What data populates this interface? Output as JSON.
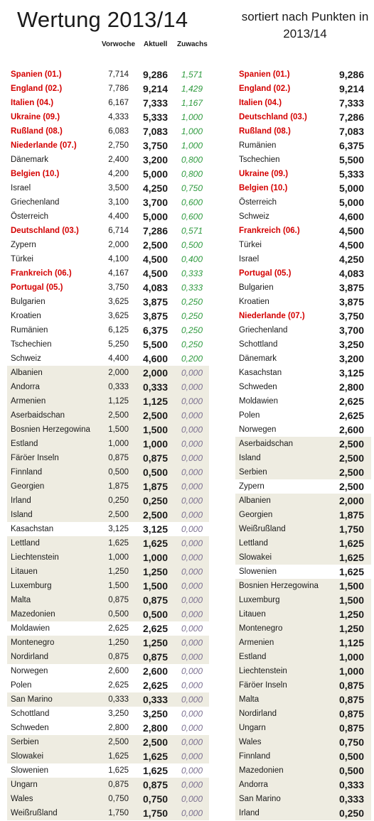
{
  "title": "Wertung 2013/14",
  "subtitle_line1": "sortiert nach Punkten in",
  "subtitle_line2": "2013/14",
  "headers": {
    "vorwoche": "Vorwoche",
    "aktuell": "Aktuell",
    "zuwachs": "Zuwachs"
  },
  "left_table": [
    {
      "name": "Spanien (01.)",
      "vorwoche": "7,714",
      "aktuell": "9,286",
      "zuwachs": "1,571",
      "highlight": true,
      "shaded": false
    },
    {
      "name": "England (02.)",
      "vorwoche": "7,786",
      "aktuell": "9,214",
      "zuwachs": "1,429",
      "highlight": true,
      "shaded": false
    },
    {
      "name": "Italien (04.)",
      "vorwoche": "6,167",
      "aktuell": "7,333",
      "zuwachs": "1,167",
      "highlight": true,
      "shaded": false
    },
    {
      "name": "Ukraine (09.)",
      "vorwoche": "4,333",
      "aktuell": "5,333",
      "zuwachs": "1,000",
      "highlight": true,
      "shaded": false
    },
    {
      "name": "Rußland (08.)",
      "vorwoche": "6,083",
      "aktuell": "7,083",
      "zuwachs": "1,000",
      "highlight": true,
      "shaded": false
    },
    {
      "name": "Niederlande (07.)",
      "vorwoche": "2,750",
      "aktuell": "3,750",
      "zuwachs": "1,000",
      "highlight": true,
      "shaded": false
    },
    {
      "name": "Dänemark",
      "vorwoche": "2,400",
      "aktuell": "3,200",
      "zuwachs": "0,800",
      "highlight": false,
      "shaded": false
    },
    {
      "name": "Belgien (10.)",
      "vorwoche": "4,200",
      "aktuell": "5,000",
      "zuwachs": "0,800",
      "highlight": true,
      "shaded": false
    },
    {
      "name": "Israel",
      "vorwoche": "3,500",
      "aktuell": "4,250",
      "zuwachs": "0,750",
      "highlight": false,
      "shaded": false
    },
    {
      "name": "Griechenland",
      "vorwoche": "3,100",
      "aktuell": "3,700",
      "zuwachs": "0,600",
      "highlight": false,
      "shaded": false
    },
    {
      "name": "Österreich",
      "vorwoche": "4,400",
      "aktuell": "5,000",
      "zuwachs": "0,600",
      "highlight": false,
      "shaded": false
    },
    {
      "name": "Deutschland (03.)",
      "vorwoche": "6,714",
      "aktuell": "7,286",
      "zuwachs": "0,571",
      "highlight": true,
      "shaded": false
    },
    {
      "name": "Zypern",
      "vorwoche": "2,000",
      "aktuell": "2,500",
      "zuwachs": "0,500",
      "highlight": false,
      "shaded": false
    },
    {
      "name": "Türkei",
      "vorwoche": "4,100",
      "aktuell": "4,500",
      "zuwachs": "0,400",
      "highlight": false,
      "shaded": false
    },
    {
      "name": "Frankreich (06.)",
      "vorwoche": "4,167",
      "aktuell": "4,500",
      "zuwachs": "0,333",
      "highlight": true,
      "shaded": false
    },
    {
      "name": "Portugal (05.)",
      "vorwoche": "3,750",
      "aktuell": "4,083",
      "zuwachs": "0,333",
      "highlight": true,
      "shaded": false
    },
    {
      "name": "Bulgarien",
      "vorwoche": "3,625",
      "aktuell": "3,875",
      "zuwachs": "0,250",
      "highlight": false,
      "shaded": false
    },
    {
      "name": "Kroatien",
      "vorwoche": "3,625",
      "aktuell": "3,875",
      "zuwachs": "0,250",
      "highlight": false,
      "shaded": false
    },
    {
      "name": "Rumänien",
      "vorwoche": "6,125",
      "aktuell": "6,375",
      "zuwachs": "0,250",
      "highlight": false,
      "shaded": false
    },
    {
      "name": "Tschechien",
      "vorwoche": "5,250",
      "aktuell": "5,500",
      "zuwachs": "0,250",
      "highlight": false,
      "shaded": false
    },
    {
      "name": "Schweiz",
      "vorwoche": "4,400",
      "aktuell": "4,600",
      "zuwachs": "0,200",
      "highlight": false,
      "shaded": false
    },
    {
      "name": "Albanien",
      "vorwoche": "2,000",
      "aktuell": "2,000",
      "zuwachs": "0,000",
      "highlight": false,
      "shaded": true
    },
    {
      "name": "Andorra",
      "vorwoche": "0,333",
      "aktuell": "0,333",
      "zuwachs": "0,000",
      "highlight": false,
      "shaded": true
    },
    {
      "name": "Armenien",
      "vorwoche": "1,125",
      "aktuell": "1,125",
      "zuwachs": "0,000",
      "highlight": false,
      "shaded": true
    },
    {
      "name": "Aserbaidschan",
      "vorwoche": "2,500",
      "aktuell": "2,500",
      "zuwachs": "0,000",
      "highlight": false,
      "shaded": true
    },
    {
      "name": "Bosnien Herzegowina",
      "vorwoche": "1,500",
      "aktuell": "1,500",
      "zuwachs": "0,000",
      "highlight": false,
      "shaded": true
    },
    {
      "name": "Estland",
      "vorwoche": "1,000",
      "aktuell": "1,000",
      "zuwachs": "0,000",
      "highlight": false,
      "shaded": true
    },
    {
      "name": "Färöer Inseln",
      "vorwoche": "0,875",
      "aktuell": "0,875",
      "zuwachs": "0,000",
      "highlight": false,
      "shaded": true
    },
    {
      "name": "Finnland",
      "vorwoche": "0,500",
      "aktuell": "0,500",
      "zuwachs": "0,000",
      "highlight": false,
      "shaded": true
    },
    {
      "name": "Georgien",
      "vorwoche": "1,875",
      "aktuell": "1,875",
      "zuwachs": "0,000",
      "highlight": false,
      "shaded": true
    },
    {
      "name": "Irland",
      "vorwoche": "0,250",
      "aktuell": "0,250",
      "zuwachs": "0,000",
      "highlight": false,
      "shaded": true
    },
    {
      "name": "Island",
      "vorwoche": "2,500",
      "aktuell": "2,500",
      "zuwachs": "0,000",
      "highlight": false,
      "shaded": true
    },
    {
      "name": "Kasachstan",
      "vorwoche": "3,125",
      "aktuell": "3,125",
      "zuwachs": "0,000",
      "highlight": false,
      "shaded": false
    },
    {
      "name": "Lettland",
      "vorwoche": "1,625",
      "aktuell": "1,625",
      "zuwachs": "0,000",
      "highlight": false,
      "shaded": true
    },
    {
      "name": "Liechtenstein",
      "vorwoche": "1,000",
      "aktuell": "1,000",
      "zuwachs": "0,000",
      "highlight": false,
      "shaded": true
    },
    {
      "name": "Litauen",
      "vorwoche": "1,250",
      "aktuell": "1,250",
      "zuwachs": "0,000",
      "highlight": false,
      "shaded": true
    },
    {
      "name": "Luxemburg",
      "vorwoche": "1,500",
      "aktuell": "1,500",
      "zuwachs": "0,000",
      "highlight": false,
      "shaded": true
    },
    {
      "name": "Malta",
      "vorwoche": "0,875",
      "aktuell": "0,875",
      "zuwachs": "0,000",
      "highlight": false,
      "shaded": true
    },
    {
      "name": "Mazedonien",
      "vorwoche": "0,500",
      "aktuell": "0,500",
      "zuwachs": "0,000",
      "highlight": false,
      "shaded": true
    },
    {
      "name": "Moldawien",
      "vorwoche": "2,625",
      "aktuell": "2,625",
      "zuwachs": "0,000",
      "highlight": false,
      "shaded": false
    },
    {
      "name": "Montenegro",
      "vorwoche": "1,250",
      "aktuell": "1,250",
      "zuwachs": "0,000",
      "highlight": false,
      "shaded": true
    },
    {
      "name": "Nordirland",
      "vorwoche": "0,875",
      "aktuell": "0,875",
      "zuwachs": "0,000",
      "highlight": false,
      "shaded": true
    },
    {
      "name": "Norwegen",
      "vorwoche": "2,600",
      "aktuell": "2,600",
      "zuwachs": "0,000",
      "highlight": false,
      "shaded": false
    },
    {
      "name": "Polen",
      "vorwoche": "2,625",
      "aktuell": "2,625",
      "zuwachs": "0,000",
      "highlight": false,
      "shaded": false
    },
    {
      "name": "San Marino",
      "vorwoche": "0,333",
      "aktuell": "0,333",
      "zuwachs": "0,000",
      "highlight": false,
      "shaded": true
    },
    {
      "name": "Schottland",
      "vorwoche": "3,250",
      "aktuell": "3,250",
      "zuwachs": "0,000",
      "highlight": false,
      "shaded": false
    },
    {
      "name": "Schweden",
      "vorwoche": "2,800",
      "aktuell": "2,800",
      "zuwachs": "0,000",
      "highlight": false,
      "shaded": false
    },
    {
      "name": "Serbien",
      "vorwoche": "2,500",
      "aktuell": "2,500",
      "zuwachs": "0,000",
      "highlight": false,
      "shaded": true
    },
    {
      "name": "Slowakei",
      "vorwoche": "1,625",
      "aktuell": "1,625",
      "zuwachs": "0,000",
      "highlight": false,
      "shaded": true
    },
    {
      "name": "Slowenien",
      "vorwoche": "1,625",
      "aktuell": "1,625",
      "zuwachs": "0,000",
      "highlight": false,
      "shaded": false
    },
    {
      "name": "Ungarn",
      "vorwoche": "0,875",
      "aktuell": "0,875",
      "zuwachs": "0,000",
      "highlight": false,
      "shaded": true
    },
    {
      "name": "Wales",
      "vorwoche": "0,750",
      "aktuell": "0,750",
      "zuwachs": "0,000",
      "highlight": false,
      "shaded": true
    },
    {
      "name": "Weißrußland",
      "vorwoche": "1,750",
      "aktuell": "1,750",
      "zuwachs": "0,000",
      "highlight": false,
      "shaded": true
    }
  ],
  "right_table": [
    {
      "name": "Spanien (01.)",
      "punkte": "9,286",
      "highlight": true,
      "shaded": false
    },
    {
      "name": "England (02.)",
      "punkte": "9,214",
      "highlight": true,
      "shaded": false
    },
    {
      "name": "Italien (04.)",
      "punkte": "7,333",
      "highlight": true,
      "shaded": false
    },
    {
      "name": "Deutschland (03.)",
      "punkte": "7,286",
      "highlight": true,
      "shaded": false
    },
    {
      "name": "Rußland (08.)",
      "punkte": "7,083",
      "highlight": true,
      "shaded": false
    },
    {
      "name": "Rumänien",
      "punkte": "6,375",
      "highlight": false,
      "shaded": false
    },
    {
      "name": "Tschechien",
      "punkte": "5,500",
      "highlight": false,
      "shaded": false
    },
    {
      "name": "Ukraine (09.)",
      "punkte": "5,333",
      "highlight": true,
      "shaded": false
    },
    {
      "name": "Belgien (10.)",
      "punkte": "5,000",
      "highlight": true,
      "shaded": false
    },
    {
      "name": "Österreich",
      "punkte": "5,000",
      "highlight": false,
      "shaded": false
    },
    {
      "name": "Schweiz",
      "punkte": "4,600",
      "highlight": false,
      "shaded": false
    },
    {
      "name": "Frankreich (06.)",
      "punkte": "4,500",
      "highlight": true,
      "shaded": false
    },
    {
      "name": "Türkei",
      "punkte": "4,500",
      "highlight": false,
      "shaded": false
    },
    {
      "name": "Israel",
      "punkte": "4,250",
      "highlight": false,
      "shaded": false
    },
    {
      "name": "Portugal (05.)",
      "punkte": "4,083",
      "highlight": true,
      "shaded": false
    },
    {
      "name": "Bulgarien",
      "punkte": "3,875",
      "highlight": false,
      "shaded": false
    },
    {
      "name": "Kroatien",
      "punkte": "3,875",
      "highlight": false,
      "shaded": false
    },
    {
      "name": "Niederlande (07.)",
      "punkte": "3,750",
      "highlight": true,
      "shaded": false
    },
    {
      "name": "Griechenland",
      "punkte": "3,700",
      "highlight": false,
      "shaded": false
    },
    {
      "name": "Schottland",
      "punkte": "3,250",
      "highlight": false,
      "shaded": false
    },
    {
      "name": "Dänemark",
      "punkte": "3,200",
      "highlight": false,
      "shaded": false
    },
    {
      "name": "Kasachstan",
      "punkte": "3,125",
      "highlight": false,
      "shaded": false
    },
    {
      "name": "Schweden",
      "punkte": "2,800",
      "highlight": false,
      "shaded": false
    },
    {
      "name": "Moldawien",
      "punkte": "2,625",
      "highlight": false,
      "shaded": false
    },
    {
      "name": "Polen",
      "punkte": "2,625",
      "highlight": false,
      "shaded": false
    },
    {
      "name": "Norwegen",
      "punkte": "2,600",
      "highlight": false,
      "shaded": false
    },
    {
      "name": "Aserbaidschan",
      "punkte": "2,500",
      "highlight": false,
      "shaded": true
    },
    {
      "name": "Island",
      "punkte": "2,500",
      "highlight": false,
      "shaded": true
    },
    {
      "name": "Serbien",
      "punkte": "2,500",
      "highlight": false,
      "shaded": true
    },
    {
      "name": "Zypern",
      "punkte": "2,500",
      "highlight": false,
      "shaded": false
    },
    {
      "name": "Albanien",
      "punkte": "2,000",
      "highlight": false,
      "shaded": true
    },
    {
      "name": "Georgien",
      "punkte": "1,875",
      "highlight": false,
      "shaded": true
    },
    {
      "name": "Weißrußland",
      "punkte": "1,750",
      "highlight": false,
      "shaded": true
    },
    {
      "name": "Lettland",
      "punkte": "1,625",
      "highlight": false,
      "shaded": true
    },
    {
      "name": "Slowakei",
      "punkte": "1,625",
      "highlight": false,
      "shaded": true
    },
    {
      "name": "Slowenien",
      "punkte": "1,625",
      "highlight": false,
      "shaded": false
    },
    {
      "name": "Bosnien Herzegowina",
      "punkte": "1,500",
      "highlight": false,
      "shaded": true
    },
    {
      "name": "Luxemburg",
      "punkte": "1,500",
      "highlight": false,
      "shaded": true
    },
    {
      "name": "Litauen",
      "punkte": "1,250",
      "highlight": false,
      "shaded": true
    },
    {
      "name": "Montenegro",
      "punkte": "1,250",
      "highlight": false,
      "shaded": true
    },
    {
      "name": "Armenien",
      "punkte": "1,125",
      "highlight": false,
      "shaded": true
    },
    {
      "name": "Estland",
      "punkte": "1,000",
      "highlight": false,
      "shaded": true
    },
    {
      "name": "Liechtenstein",
      "punkte": "1,000",
      "highlight": false,
      "shaded": true
    },
    {
      "name": "Färöer Inseln",
      "punkte": "0,875",
      "highlight": false,
      "shaded": true
    },
    {
      "name": "Malta",
      "punkte": "0,875",
      "highlight": false,
      "shaded": true
    },
    {
      "name": "Nordirland",
      "punkte": "0,875",
      "highlight": false,
      "shaded": true
    },
    {
      "name": "Ungarn",
      "punkte": "0,875",
      "highlight": false,
      "shaded": true
    },
    {
      "name": "Wales",
      "punkte": "0,750",
      "highlight": false,
      "shaded": true
    },
    {
      "name": "Finnland",
      "punkte": "0,500",
      "highlight": false,
      "shaded": true
    },
    {
      "name": "Mazedonien",
      "punkte": "0,500",
      "highlight": false,
      "shaded": true
    },
    {
      "name": "Andorra",
      "punkte": "0,333",
      "highlight": false,
      "shaded": true
    },
    {
      "name": "San Marino",
      "punkte": "0,333",
      "highlight": false,
      "shaded": true
    },
    {
      "name": "Irland",
      "punkte": "0,250",
      "highlight": false,
      "shaded": true
    }
  ],
  "colors": {
    "highlight": "#d40000",
    "shaded_row": "#eeece1",
    "growth": "#2e9a3e",
    "zero_growth": "#7a6f8f"
  }
}
